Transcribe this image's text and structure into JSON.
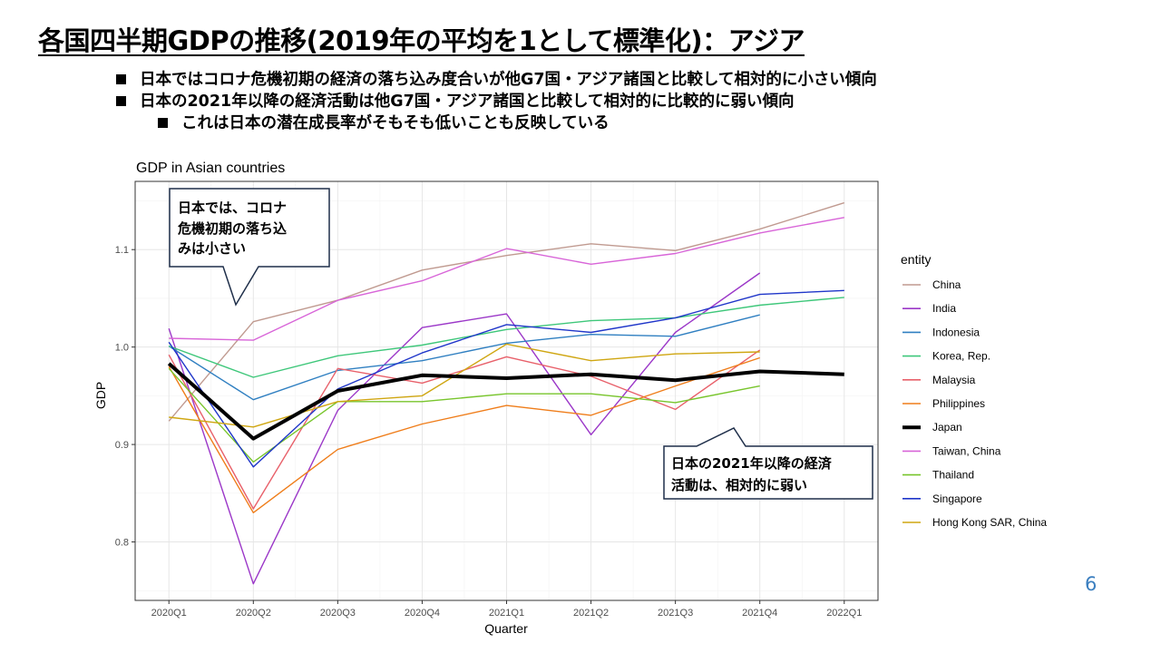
{
  "slide": {
    "title": "各国四半期GDPの推移(2019年の平均を1として標準化)：アジア",
    "bullets": [
      "日本ではコロナ危機初期の経済の落ち込み度合いが他G7国・アジア諸国と比較して相対的に小さい傾向",
      "日本の2021年以降の経済活動は他G7国・アジア諸国と比較して相対的に比較的に弱い傾向",
      "これは日本の潜在成長率がそもそも低いことも反映している"
    ],
    "page_number": "6"
  },
  "callouts": {
    "first": [
      "日本では、コロナ",
      "危機初期の落ち込",
      "みは小さい"
    ],
    "second": [
      "日本の2021年以降の経済",
      "活動は、相対的に弱い"
    ]
  },
  "chart_data": {
    "type": "line",
    "title": "GDP in Asian countries",
    "xlabel": "Quarter",
    "ylabel": "GDP",
    "categories": [
      "2020Q1",
      "2020Q2",
      "2020Q3",
      "2020Q4",
      "2021Q1",
      "2021Q2",
      "2021Q3",
      "2021Q4",
      "2022Q1"
    ],
    "y_ticks": [
      0.8,
      0.9,
      1.0,
      1.1
    ],
    "ylim": [
      0.74,
      1.17
    ],
    "grid": true,
    "legend_title": "entity",
    "legend_position": "right",
    "series": [
      {
        "name": "China",
        "color": "#c09a90",
        "values": [
          0.924,
          1.026,
          1.048,
          1.079,
          1.094,
          1.106,
          1.099,
          1.121,
          1.148
        ]
      },
      {
        "name": "India",
        "color": "#9b37c8",
        "values": [
          1.019,
          0.757,
          0.935,
          1.02,
          1.034,
          0.91,
          1.015,
          1.076,
          null
        ]
      },
      {
        "name": "Indonesia",
        "color": "#2f7fc1",
        "values": [
          1.001,
          0.946,
          0.976,
          0.986,
          1.004,
          1.013,
          1.011,
          1.033,
          null
        ]
      },
      {
        "name": "Korea, Rep.",
        "color": "#3ec77a",
        "values": [
          1.001,
          0.969,
          0.991,
          1.002,
          1.018,
          1.027,
          1.03,
          1.043,
          1.051
        ]
      },
      {
        "name": "Malaysia",
        "color": "#e8606a",
        "values": [
          0.992,
          0.834,
          0.978,
          0.963,
          0.99,
          0.97,
          0.936,
          0.997,
          null
        ]
      },
      {
        "name": "Philippines",
        "color": "#ef7d1a",
        "values": [
          0.98,
          0.83,
          0.895,
          0.921,
          0.94,
          0.93,
          0.96,
          0.989,
          null
        ]
      },
      {
        "name": "Japan",
        "color": "#000000",
        "width": 4,
        "values": [
          0.983,
          0.906,
          0.955,
          0.971,
          0.968,
          0.972,
          0.966,
          0.975,
          0.972
        ]
      },
      {
        "name": "Taiwan, China",
        "color": "#d865d8",
        "values": [
          1.009,
          1.007,
          1.048,
          1.068,
          1.101,
          1.085,
          1.096,
          1.117,
          1.133
        ]
      },
      {
        "name": "Thailand",
        "color": "#78c52c",
        "values": [
          0.978,
          0.882,
          0.944,
          0.944,
          0.952,
          0.952,
          0.943,
          0.96,
          null
        ]
      },
      {
        "name": "Singapore",
        "color": "#1f36c9",
        "values": [
          1.005,
          0.877,
          0.957,
          0.994,
          1.023,
          1.015,
          1.03,
          1.054,
          1.058
        ]
      },
      {
        "name": "Hong Kong SAR, China",
        "color": "#cfa611",
        "values": [
          0.928,
          0.918,
          0.944,
          0.95,
          1.003,
          0.986,
          0.993,
          0.995,
          null
        ]
      }
    ]
  }
}
